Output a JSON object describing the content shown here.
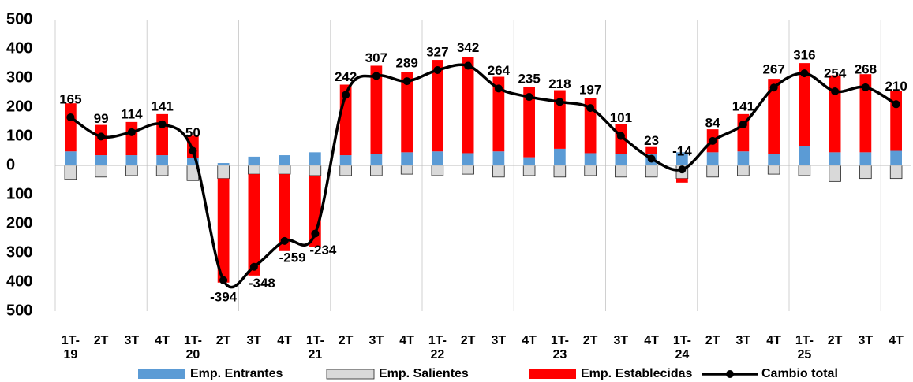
{
  "chart_data": {
    "type": "bar_line",
    "categories": [
      "1T-19",
      "2T",
      "3T",
      "4T",
      "1T-20",
      "2T",
      "3T",
      "4T",
      "1T-21",
      "2T",
      "3T",
      "4T",
      "1T-22",
      "2T",
      "3T",
      "4T",
      "1T-23",
      "2T",
      "3T",
      "4T",
      "1T-24",
      "2T",
      "3T",
      "4T",
      "1T-25",
      "2T",
      "3T",
      "4T"
    ],
    "series": [
      {
        "name": "Emp. Entrantes",
        "type": "bar",
        "color": "#5b9bd5",
        "values": [
          48,
          35,
          35,
          35,
          27,
          8,
          30,
          35,
          45,
          35,
          38,
          45,
          48,
          42,
          48,
          28,
          57,
          42,
          38,
          38,
          45,
          45,
          48,
          38,
          65,
          45,
          45,
          50
        ]
      },
      {
        "name": "Emp. Salientes",
        "type": "bar",
        "color": "#d9d9d9",
        "values": [
          -48,
          -40,
          -35,
          -35,
          -52,
          -45,
          -30,
          -30,
          -35,
          -35,
          -35,
          -30,
          -35,
          -30,
          -40,
          -35,
          -40,
          -35,
          -40,
          -40,
          -45,
          -40,
          -35,
          -30,
          -35,
          -55,
          -45,
          -45
        ]
      },
      {
        "name": "Emp. Establecidas",
        "type": "bar",
        "color": "#ff0000",
        "values": [
          165,
          104,
          114,
          141,
          75,
          -357,
          -348,
          -264,
          -244,
          242,
          304,
          274,
          314,
          330,
          256,
          242,
          201,
          190,
          103,
          25,
          -14,
          79,
          128,
          259,
          286,
          264,
          268,
          205
        ]
      },
      {
        "name": "Cambio total",
        "type": "line",
        "color": "#000000",
        "values": [
          165,
          99,
          114,
          141,
          50,
          -394,
          -348,
          -259,
          -234,
          242,
          307,
          289,
          327,
          342,
          264,
          235,
          218,
          197,
          101,
          23,
          -14,
          84,
          141,
          267,
          316,
          254,
          268,
          210
        ]
      }
    ],
    "ylim": [
      -500,
      500
    ],
    "yticks": [
      {
        "value": -500,
        "label": "500"
      },
      {
        "value": -400,
        "label": "400"
      },
      {
        "value": -300,
        "label": "300"
      },
      {
        "value": -200,
        "label": "200"
      },
      {
        "value": -100,
        "label": "100"
      },
      0,
      100,
      200,
      300,
      400,
      500
    ],
    "legend": "bottom"
  }
}
